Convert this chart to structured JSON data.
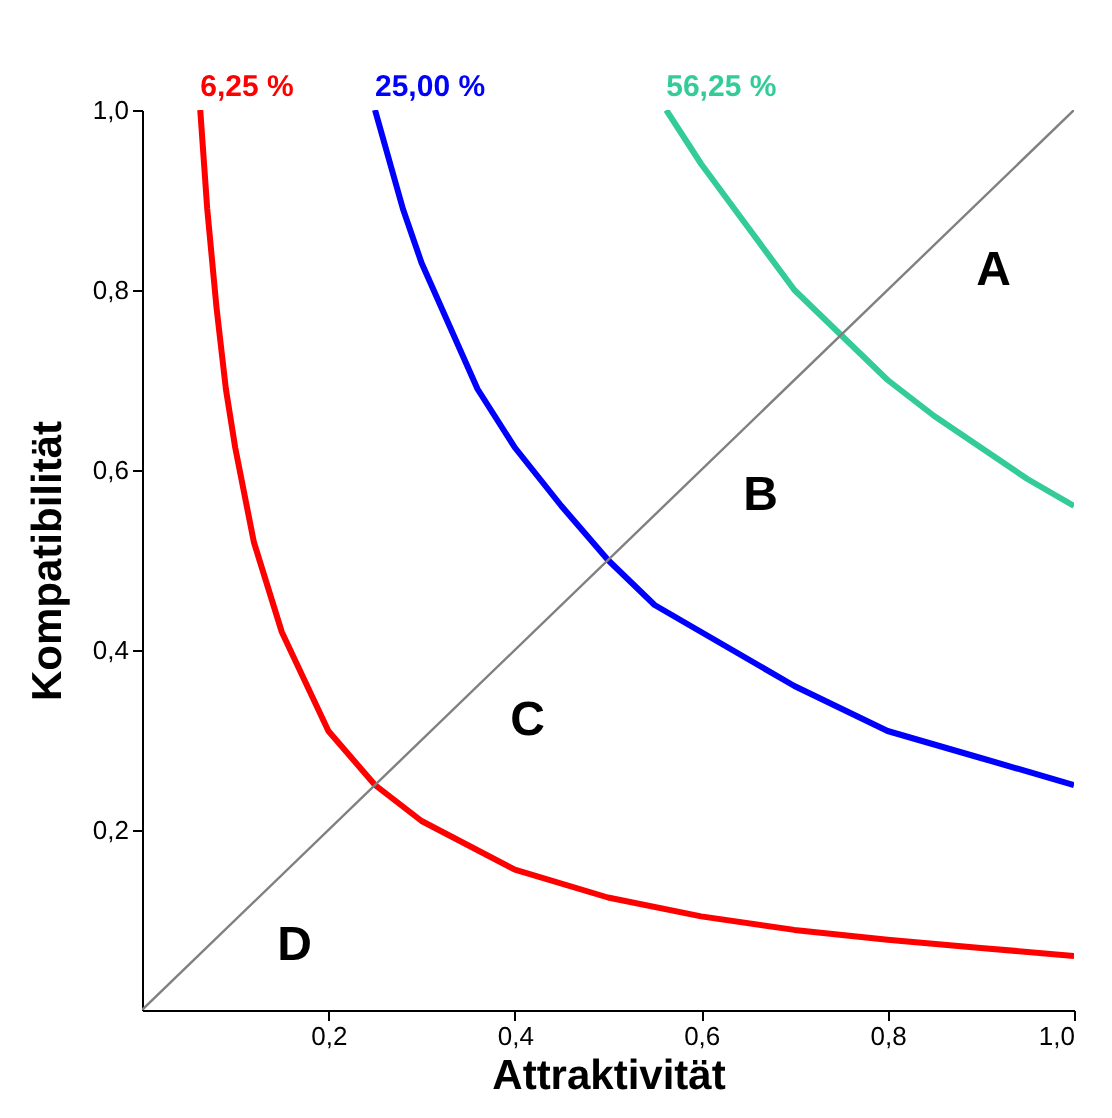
{
  "chart_data": {
    "type": "line",
    "xlabel": "Attraktivität",
    "ylabel": "Kompatibilität",
    "xlim": [
      0,
      1
    ],
    "ylim": [
      0,
      1
    ],
    "xticks": [
      {
        "value": 0.2,
        "label": "0,2"
      },
      {
        "value": 0.4,
        "label": "0,4"
      },
      {
        "value": 0.6,
        "label": "0,6"
      },
      {
        "value": 0.8,
        "label": "0,8"
      },
      {
        "value": 1,
        "label": "1,0"
      }
    ],
    "yticks": [
      {
        "value": 0.2,
        "label": "0,2"
      },
      {
        "value": 0.4,
        "label": "0,4"
      },
      {
        "value": 0.6,
        "label": "0,6"
      },
      {
        "value": 0.8,
        "label": "0,8"
      },
      {
        "value": 1,
        "label": "1,0"
      }
    ],
    "grid": false,
    "legend": false,
    "marker": "none",
    "line_style": "solid",
    "series": [
      {
        "name": "6,25 %",
        "color": "#ff0000",
        "x": [
          0.0625,
          0.07,
          0.08,
          0.09,
          0.1,
          0.12,
          0.15,
          0.2,
          0.25,
          0.3,
          0.4,
          0.5,
          0.6,
          0.7,
          0.8,
          0.9,
          1.0
        ],
        "values": [
          1.0,
          0.89,
          0.78,
          0.69,
          0.625,
          0.52,
          0.42,
          0.31,
          0.25,
          0.21,
          0.156,
          0.125,
          0.104,
          0.089,
          0.078,
          0.069,
          0.06
        ]
      },
      {
        "name": "25,00 %",
        "color": "#0000ff",
        "x": [
          0.25,
          0.28,
          0.3,
          0.33,
          0.36,
          0.4,
          0.45,
          0.5,
          0.55,
          0.6,
          0.7,
          0.8,
          0.9,
          1.0
        ],
        "values": [
          1.0,
          0.89,
          0.83,
          0.76,
          0.69,
          0.625,
          0.56,
          0.5,
          0.45,
          0.42,
          0.36,
          0.31,
          0.28,
          0.25
        ]
      },
      {
        "name": "56,25 %",
        "color": "#33cc99",
        "x": [
          0.5625,
          0.6,
          0.65,
          0.7,
          0.75,
          0.8,
          0.85,
          0.9,
          0.95,
          1.0
        ],
        "values": [
          1.0,
          0.94,
          0.87,
          0.8,
          0.75,
          0.7,
          0.66,
          0.625,
          0.59,
          0.56
        ]
      },
      {
        "type": "line",
        "color": "#808080",
        "x": [
          0,
          1
        ],
        "values": [
          0,
          1
        ]
      }
    ],
    "annotations": [
      "A",
      "B",
      "C",
      "D"
    ]
  }
}
